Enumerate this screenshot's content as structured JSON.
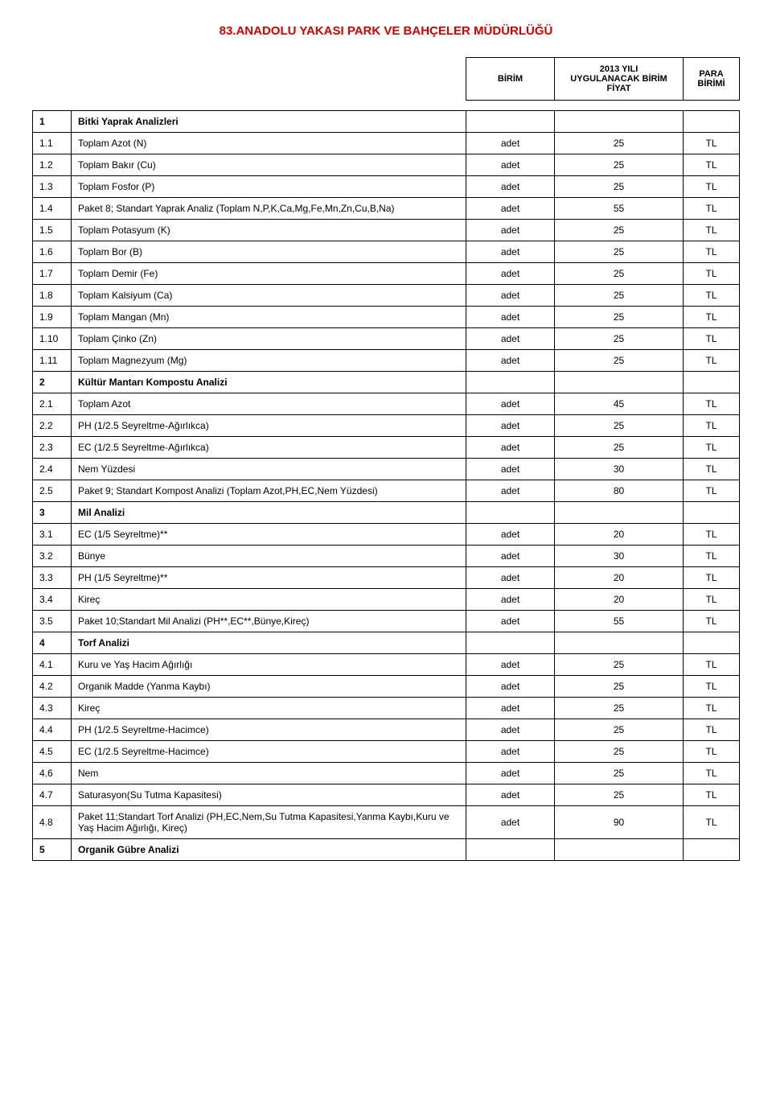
{
  "title": "83.ANADOLU YAKASI PARK VE BAHÇELER MÜDÜRLÜĞÜ",
  "title_color": "#cc0000",
  "header": {
    "birim": "BİRİM",
    "fiyat_line1": "2013 YILI",
    "fiyat_line2": "UYGULANACAK BİRİM",
    "fiyat_line3": "FİYAT",
    "para_line1": "PARA",
    "para_line2": "BİRİMİ"
  },
  "rows": [
    {
      "idx": "1",
      "desc": "Bitki Yaprak Analizleri",
      "unit": "",
      "price": "",
      "curr": "",
      "section": true
    },
    {
      "idx": "1.1",
      "desc": "Toplam Azot (N)",
      "unit": "adet",
      "price": "25",
      "curr": "TL"
    },
    {
      "idx": "1.2",
      "desc": "Toplam Bakır (Cu)",
      "unit": "adet",
      "price": "25",
      "curr": "TL"
    },
    {
      "idx": "1.3",
      "desc": "Toplam Fosfor (P)",
      "unit": "adet",
      "price": "25",
      "curr": "TL"
    },
    {
      "idx": "1.4",
      "desc": "Paket 8; Standart Yaprak Analiz (Toplam N,P,K,Ca,Mg,Fe,Mn,Zn,Cu,B,Na)",
      "unit": "adet",
      "price": "55",
      "curr": "TL"
    },
    {
      "idx": "1.5",
      "desc": "Toplam Potasyum (K)",
      "unit": "adet",
      "price": "25",
      "curr": "TL"
    },
    {
      "idx": "1.6",
      "desc": "Toplam Bor (B)",
      "unit": "adet",
      "price": "25",
      "curr": "TL"
    },
    {
      "idx": "1.7",
      "desc": "Toplam Demir (Fe)",
      "unit": "adet",
      "price": "25",
      "curr": "TL"
    },
    {
      "idx": "1.8",
      "desc": "Toplam Kalsiyum (Ca)",
      "unit": "adet",
      "price": "25",
      "curr": "TL"
    },
    {
      "idx": "1.9",
      "desc": "Toplam Mangan (Mn)",
      "unit": "adet",
      "price": "25",
      "curr": "TL"
    },
    {
      "idx": "1.10",
      "desc": "Toplam Çinko (Zn)",
      "unit": "adet",
      "price": "25",
      "curr": "TL"
    },
    {
      "idx": "1.11",
      "desc": "Toplam Magnezyum (Mg)",
      "unit": "adet",
      "price": "25",
      "curr": "TL"
    },
    {
      "idx": "2",
      "desc": "Kültür Mantarı Kompostu Analizi",
      "unit": "",
      "price": "",
      "curr": "",
      "section": true
    },
    {
      "idx": "2.1",
      "desc": "Toplam Azot",
      "unit": "adet",
      "price": "45",
      "curr": "TL"
    },
    {
      "idx": "2.2",
      "desc": "PH (1/2.5 Seyreltme-Ağırlıkca)",
      "unit": "adet",
      "price": "25",
      "curr": "TL"
    },
    {
      "idx": "2.3",
      "desc": "EC (1/2.5 Seyreltme-Ağırlıkca)",
      "unit": "adet",
      "price": "25",
      "curr": "TL"
    },
    {
      "idx": "2.4",
      "desc": "Nem Yüzdesi",
      "unit": "adet",
      "price": "30",
      "curr": "TL"
    },
    {
      "idx": "2.5",
      "desc": "Paket 9; Standart Kompost Analizi (Toplam Azot,PH,EC,Nem Yüzdesi)",
      "unit": "adet",
      "price": "80",
      "curr": "TL"
    },
    {
      "idx": "3",
      "desc": "Mil Analizi",
      "unit": "",
      "price": "",
      "curr": "",
      "section": true
    },
    {
      "idx": "3.1",
      "desc": "EC (1/5 Seyreltme)**",
      "unit": "adet",
      "price": "20",
      "curr": "TL"
    },
    {
      "idx": "3.2",
      "desc": "Bünye",
      "unit": "adet",
      "price": "30",
      "curr": "TL"
    },
    {
      "idx": "3.3",
      "desc": "PH (1/5 Seyreltme)**",
      "unit": "adet",
      "price": "20",
      "curr": "TL"
    },
    {
      "idx": "3.4",
      "desc": "Kireç",
      "unit": "adet",
      "price": "20",
      "curr": "TL"
    },
    {
      "idx": "3.5",
      "desc": "Paket 10;Standart Mil Analizi (PH**,EC**,Bünye,Kireç)",
      "unit": "adet",
      "price": "55",
      "curr": "TL"
    },
    {
      "idx": "4",
      "desc": "Torf Analizi",
      "unit": "",
      "price": "",
      "curr": "",
      "section": true
    },
    {
      "idx": "4.1",
      "desc": "Kuru ve Yaş Hacim Ağırlığı",
      "unit": "adet",
      "price": "25",
      "curr": "TL"
    },
    {
      "idx": "4.2",
      "desc": "Organik Madde (Yanma Kaybı)",
      "unit": "adet",
      "price": "25",
      "curr": "TL"
    },
    {
      "idx": "4.3",
      "desc": "Kireç",
      "unit": "adet",
      "price": "25",
      "curr": "TL"
    },
    {
      "idx": "4.4",
      "desc": "PH (1/2.5 Seyreltme-Hacimce)",
      "unit": "adet",
      "price": "25",
      "curr": "TL"
    },
    {
      "idx": "4.5",
      "desc": "EC (1/2.5 Seyreltme-Hacimce)",
      "unit": "adet",
      "price": "25",
      "curr": "TL"
    },
    {
      "idx": "4.6",
      "desc": "Nem",
      "unit": "adet",
      "price": "25",
      "curr": "TL"
    },
    {
      "idx": "4.7",
      "desc": "Saturasyon(Su Tutma Kapasitesi)",
      "unit": "adet",
      "price": "25",
      "curr": "TL"
    },
    {
      "idx": "4.8",
      "desc": "Paket 11;Standart Torf Analizi (PH,EC,Nem,Su Tutma Kapasitesi,Yanma Kaybı,Kuru ve Yaş Hacim Ağırlığı, Kireç)",
      "unit": "adet",
      "price": "90",
      "curr": "TL"
    },
    {
      "idx": "5",
      "desc": "Organik Gübre Analizi",
      "unit": "",
      "price": "",
      "curr": "",
      "section": true
    }
  ]
}
